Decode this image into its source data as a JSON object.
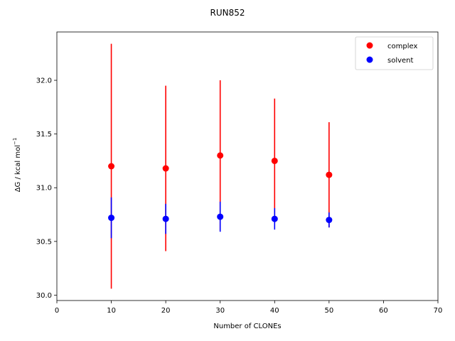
{
  "chart_data": {
    "type": "scatter",
    "title": "RUN852",
    "xlabel": "Number of CLONEs",
    "ylabel": "ΔG / kcal mol",
    "ylabel_superscript": "−1",
    "xlim": [
      0,
      70
    ],
    "ylim": [
      29.95,
      32.45
    ],
    "xticks": [
      0,
      10,
      20,
      30,
      40,
      50,
      60,
      70
    ],
    "yticks": [
      30.0,
      30.5,
      31.0,
      31.5,
      32.0
    ],
    "ytick_labels": [
      "30.0",
      "30.5",
      "31.0",
      "31.5",
      "32.0"
    ],
    "grid": false,
    "legend_position": "top-right",
    "series": [
      {
        "name": "complex",
        "color": "#ff0000",
        "x": [
          10,
          20,
          30,
          40,
          50
        ],
        "y": [
          31.2,
          31.18,
          31.3,
          31.25,
          31.12
        ],
        "yerr": [
          1.14,
          0.77,
          0.7,
          0.58,
          0.49
        ]
      },
      {
        "name": "solvent",
        "color": "#0000ff",
        "x": [
          10,
          20,
          30,
          40,
          50
        ],
        "y": [
          30.72,
          30.71,
          30.73,
          30.71,
          30.7
        ],
        "yerr": [
          0.19,
          0.14,
          0.14,
          0.1,
          0.07
        ]
      }
    ]
  }
}
